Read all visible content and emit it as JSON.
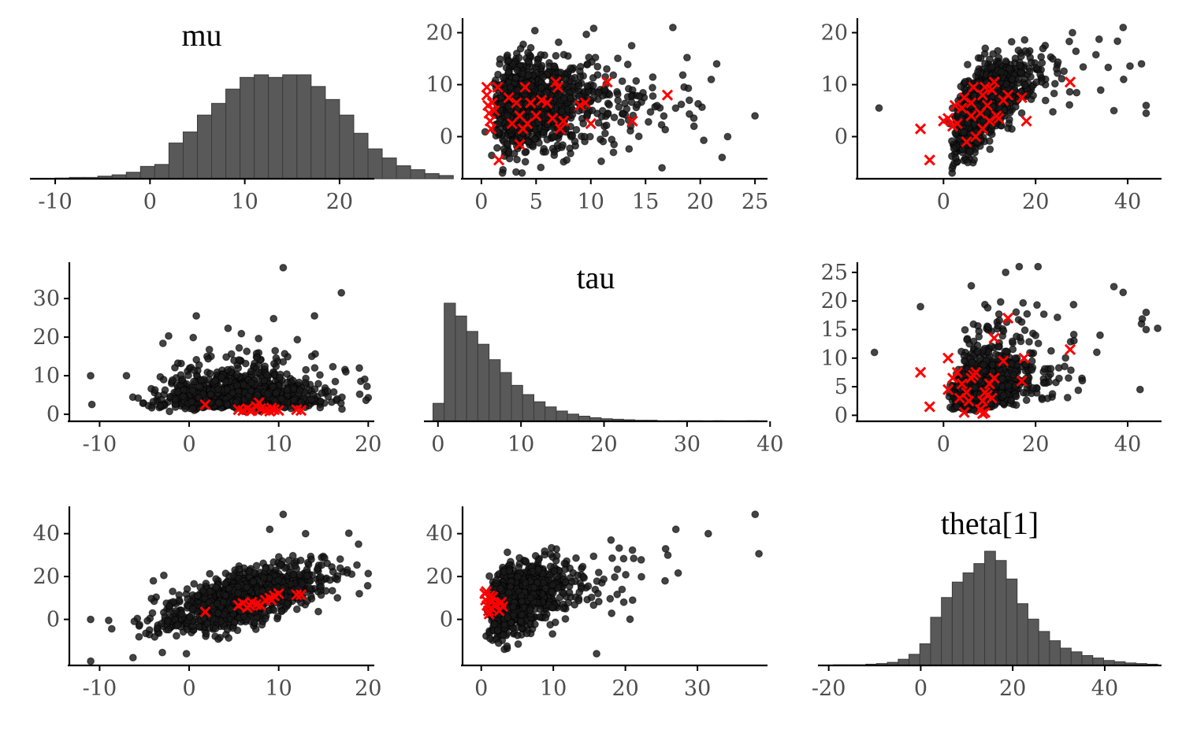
{
  "chart_data": {
    "type": "scatter",
    "layout": "pairs-matrix 3x3",
    "variables": [
      "mu",
      "tau",
      "theta[1]"
    ],
    "diagonal": "histogram",
    "off_diagonal": "scatter",
    "divergent_marker": "x",
    "colors": {
      "points": "#1a1a1a",
      "bars": "#595959",
      "divergent": "#ff0000"
    },
    "panels": [
      {
        "id": "mu-hist",
        "type": "histogram",
        "title": "mu",
        "xlim": [
          -12.5,
          23.5
        ],
        "xticks": [
          -10,
          0,
          10,
          20
        ],
        "bin_start": -10,
        "bin_width": 1.5,
        "counts": [
          1,
          2,
          2,
          4,
          6,
          10,
          19,
          22,
          55,
          72,
          98,
          116,
          138,
          156,
          160,
          156,
          160,
          160,
          142,
          122,
          98,
          70,
          46,
          32,
          20,
          14,
          8,
          5
        ]
      },
      {
        "id": "tau-vs-mu",
        "type": "scatter",
        "x_var": "tau",
        "y_var": "mu",
        "xlim": [
          -1,
          26
        ],
        "ylim": [
          -7.5,
          22.5
        ],
        "xticks": [
          0,
          5,
          10,
          15,
          20,
          25
        ],
        "yticks": [
          0,
          10,
          20
        ],
        "x_center": 5,
        "x_spread": 4,
        "x_skew": "right",
        "y_center": 6,
        "y_spread": 4.5,
        "correlation": 0.05,
        "outliers": [
          [
            25,
            4
          ],
          [
            22.5,
            0
          ],
          [
            22,
            -4
          ],
          [
            21.5,
            14
          ],
          [
            21,
            11
          ],
          [
            17.5,
            21
          ],
          [
            16.5,
            -6
          ],
          [
            19,
            7
          ]
        ],
        "divergent": [
          [
            0.5,
            9.5
          ],
          [
            0.5,
            8
          ],
          [
            0.6,
            6
          ],
          [
            0.7,
            4.5
          ],
          [
            0.8,
            3
          ],
          [
            0.9,
            1.5
          ],
          [
            1,
            6.5
          ],
          [
            1.2,
            5
          ],
          [
            1.5,
            9.5
          ],
          [
            1.6,
            -4.5
          ],
          [
            2.5,
            7.5
          ],
          [
            2.8,
            2.5
          ],
          [
            3.2,
            6.5
          ],
          [
            3.5,
            4
          ],
          [
            3.8,
            1.5
          ],
          [
            4,
            9.5
          ],
          [
            4.2,
            2.5
          ],
          [
            4.5,
            6.5
          ],
          [
            5,
            4
          ],
          [
            5.5,
            7
          ],
          [
            6,
            6.5
          ],
          [
            6.5,
            3.5
          ],
          [
            6.8,
            10.5
          ],
          [
            7,
            9.5
          ],
          [
            7.2,
            1.5
          ],
          [
            7.5,
            3
          ],
          [
            9,
            6
          ],
          [
            9.5,
            6.5
          ],
          [
            10,
            2.5
          ],
          [
            11.5,
            10.5
          ],
          [
            13.8,
            3
          ],
          [
            17,
            8
          ],
          [
            3.5,
            -1.5
          ]
        ]
      },
      {
        "id": "theta-vs-mu",
        "type": "scatter",
        "x_var": "theta[1]",
        "y_var": "mu",
        "xlim": [
          -17,
          47
        ],
        "ylim": [
          -7.5,
          22.5
        ],
        "xticks": [
          0,
          20,
          40
        ],
        "yticks": [
          0,
          10,
          20
        ],
        "x_center": 8,
        "x_spread": 7,
        "x_skew": "right",
        "y_center": 6,
        "y_spread": 4.5,
        "correlation": 0.65,
        "outliers": [
          [
            -14,
            5.5
          ],
          [
            39,
            21
          ],
          [
            44,
            6
          ],
          [
            43,
            14
          ],
          [
            44,
            4.5
          ],
          [
            28,
            20
          ],
          [
            37,
            5
          ]
        ],
        "divergent": [
          [
            -5,
            1.5
          ],
          [
            -3,
            -4.5
          ],
          [
            0,
            3
          ],
          [
            1,
            3.5
          ],
          [
            2,
            2
          ],
          [
            2.5,
            6
          ],
          [
            3,
            2.5
          ],
          [
            4,
            5.5
          ],
          [
            4.5,
            7.5
          ],
          [
            5,
            -1
          ],
          [
            6,
            6.5
          ],
          [
            6.5,
            9.5
          ],
          [
            7,
            0
          ],
          [
            8,
            4.5
          ],
          [
            8.5,
            8
          ],
          [
            9,
            9.5
          ],
          [
            9.5,
            6
          ],
          [
            10,
            3
          ],
          [
            10.5,
            9
          ],
          [
            11,
            10.5
          ],
          [
            11.5,
            4
          ],
          [
            12,
            3.5
          ],
          [
            13,
            7
          ],
          [
            14,
            8
          ],
          [
            17,
            7.5
          ],
          [
            18,
            3
          ],
          [
            27.5,
            10.5
          ],
          [
            8.5,
            1.5
          ],
          [
            6,
            4
          ]
        ]
      },
      {
        "id": "mu-vs-tau",
        "type": "scatter",
        "x_var": "mu",
        "y_var": "tau",
        "xlim": [
          -12.5,
          20.5
        ],
        "ylim": [
          -1,
          39
        ],
        "xticks": [
          -10,
          0,
          10,
          20
        ],
        "yticks": [
          0,
          10,
          20,
          30
        ],
        "x_center": 6,
        "x_spread": 4.5,
        "y_center": 5,
        "y_spread": 4,
        "y_skew": "right",
        "correlation": 0.05,
        "outliers": [
          [
            -11,
            10
          ],
          [
            10.5,
            38
          ],
          [
            17,
            31.5
          ],
          [
            14,
            25.5
          ],
          [
            0.8,
            25.5
          ],
          [
            -7,
            10
          ],
          [
            19,
            12
          ],
          [
            17.5,
            11
          ]
        ],
        "divergent": [
          [
            1.8,
            2.5
          ],
          [
            5.5,
            1.2
          ],
          [
            6,
            1
          ],
          [
            6.5,
            1.5
          ],
          [
            7,
            1
          ],
          [
            7.5,
            2
          ],
          [
            7.8,
            3
          ],
          [
            8,
            1.5
          ],
          [
            8.5,
            1
          ],
          [
            9,
            0.8
          ],
          [
            9.5,
            1.2
          ],
          [
            10,
            1
          ],
          [
            12,
            1.2
          ],
          [
            12.5,
            1
          ],
          [
            6.8,
            0.9
          ],
          [
            9.2,
            1.6
          ]
        ]
      },
      {
        "id": "tau-hist",
        "type": "histogram",
        "title": "tau",
        "xlim": [
          -1.5,
          39.5
        ],
        "xticks": [
          0,
          10,
          20,
          30,
          40
        ],
        "bin_start": -0.6,
        "bin_width": 1.35,
        "counts": [
          35,
          230,
          205,
          175,
          150,
          120,
          95,
          70,
          52,
          38,
          28,
          20,
          14,
          10,
          7,
          5,
          4,
          3,
          2,
          2,
          1,
          1,
          1,
          1,
          0,
          1,
          0,
          0,
          1
        ]
      },
      {
        "id": "theta-vs-tau",
        "type": "scatter",
        "x_var": "theta[1]",
        "y_var": "tau",
        "xlim": [
          -17,
          47
        ],
        "ylim": [
          -0.5,
          26.5
        ],
        "xticks": [
          0,
          20,
          40
        ],
        "yticks": [
          0,
          5,
          10,
          15,
          20,
          25
        ],
        "x_center": 8,
        "x_spread": 7,
        "x_skew": "right",
        "y_center": 5,
        "y_spread": 4,
        "y_skew": "right",
        "correlation": 0.4,
        "outliers": [
          [
            -15,
            11
          ],
          [
            13.5,
            25
          ],
          [
            37,
            22.5
          ],
          [
            39,
            21.5
          ],
          [
            44,
            18
          ],
          [
            43,
            16
          ],
          [
            44,
            15
          ],
          [
            34,
            14
          ],
          [
            -5,
            19
          ]
        ],
        "divergent": [
          [
            -5,
            7.5
          ],
          [
            -3,
            1.5
          ],
          [
            1,
            10
          ],
          [
            1,
            4.5
          ],
          [
            2,
            6.5
          ],
          [
            3,
            7.5
          ],
          [
            3.5,
            3
          ],
          [
            4,
            5.5
          ],
          [
            4.5,
            0.5
          ],
          [
            5,
            4
          ],
          [
            5.5,
            2.5
          ],
          [
            6,
            6.5
          ],
          [
            6.5,
            7
          ],
          [
            7,
            7.5
          ],
          [
            8,
            1
          ],
          [
            8.5,
            2.5
          ],
          [
            9,
            0.5
          ],
          [
            9,
            4
          ],
          [
            9.5,
            3.5
          ],
          [
            10,
            5.5
          ],
          [
            11,
            6.5
          ],
          [
            11,
            13.5
          ],
          [
            13,
            9.5
          ],
          [
            14,
            17
          ],
          [
            17,
            6
          ],
          [
            17.5,
            10
          ],
          [
            27.5,
            11.5
          ],
          [
            8.5,
            0.3
          ],
          [
            10.5,
            3
          ]
        ]
      },
      {
        "id": "mu-vs-theta",
        "type": "scatter",
        "x_var": "mu",
        "y_var": "theta[1]",
        "xlim": [
          -12.5,
          20.5
        ],
        "ylim": [
          -20,
          52
        ],
        "xticks": [
          -10,
          0,
          10,
          20
        ],
        "yticks": [
          0,
          20,
          40
        ],
        "x_center": 6,
        "x_spread": 4.5,
        "y_center": 10,
        "y_spread": 8,
        "correlation": 0.65,
        "outliers": [
          [
            -11,
            0
          ],
          [
            10.5,
            49
          ],
          [
            9,
            42
          ],
          [
            -0.3,
            -16
          ],
          [
            13,
            40
          ],
          [
            -4,
            18
          ],
          [
            19,
            12
          ]
        ],
        "divergent": [
          [
            1.8,
            3.5
          ],
          [
            5.5,
            6.5
          ],
          [
            6,
            7.5
          ],
          [
            6.5,
            5.5
          ],
          [
            7,
            8
          ],
          [
            7.5,
            7
          ],
          [
            8,
            6.5
          ],
          [
            8.5,
            9
          ],
          [
            9,
            10
          ],
          [
            9.5,
            11
          ],
          [
            10,
            12
          ],
          [
            12,
            11.5
          ],
          [
            12.5,
            11.5
          ],
          [
            6.8,
            6.5
          ],
          [
            9.2,
            9
          ]
        ]
      },
      {
        "id": "tau-vs-theta",
        "type": "scatter",
        "x_var": "tau",
        "y_var": "theta[1]",
        "xlim": [
          -1.5,
          39.5
        ],
        "ylim": [
          -20,
          52
        ],
        "xticks": [
          0,
          10,
          20,
          30
        ],
        "yticks": [
          0,
          20,
          40
        ],
        "x_center": 5,
        "x_spread": 4,
        "x_skew": "right",
        "y_center": 10,
        "y_spread": 8,
        "correlation": 0.4,
        "outliers": [
          [
            38,
            49
          ],
          [
            31.5,
            40
          ],
          [
            27,
            42
          ],
          [
            25.5,
            18
          ],
          [
            16,
            -16
          ],
          [
            21,
            9
          ],
          [
            18,
            37
          ]
        ],
        "divergent": [
          [
            0.5,
            12
          ],
          [
            0.6,
            9
          ],
          [
            0.8,
            6.5
          ],
          [
            1,
            4
          ],
          [
            1.2,
            11
          ],
          [
            1.4,
            8
          ],
          [
            1.5,
            5
          ],
          [
            1.6,
            10.5
          ],
          [
            2,
            7
          ],
          [
            2.5,
            4
          ],
          [
            2.8,
            8
          ],
          [
            3,
            6
          ],
          [
            0.7,
            13
          ],
          [
            1.1,
            2.5
          ]
        ]
      },
      {
        "id": "theta-hist",
        "type": "histogram",
        "title": "theta[1]",
        "xlim": [
          -22,
          52
        ],
        "xticks": [
          -20,
          0,
          20,
          40
        ],
        "bin_start": -19,
        "bin_width": 2.35,
        "counts": [
          1,
          1,
          1,
          2,
          3,
          5,
          10,
          18,
          35,
          78,
          110,
          135,
          150,
          165,
          185,
          170,
          140,
          100,
          75,
          55,
          40,
          28,
          22,
          16,
          12,
          8,
          6,
          4,
          3,
          2
        ]
      }
    ]
  }
}
